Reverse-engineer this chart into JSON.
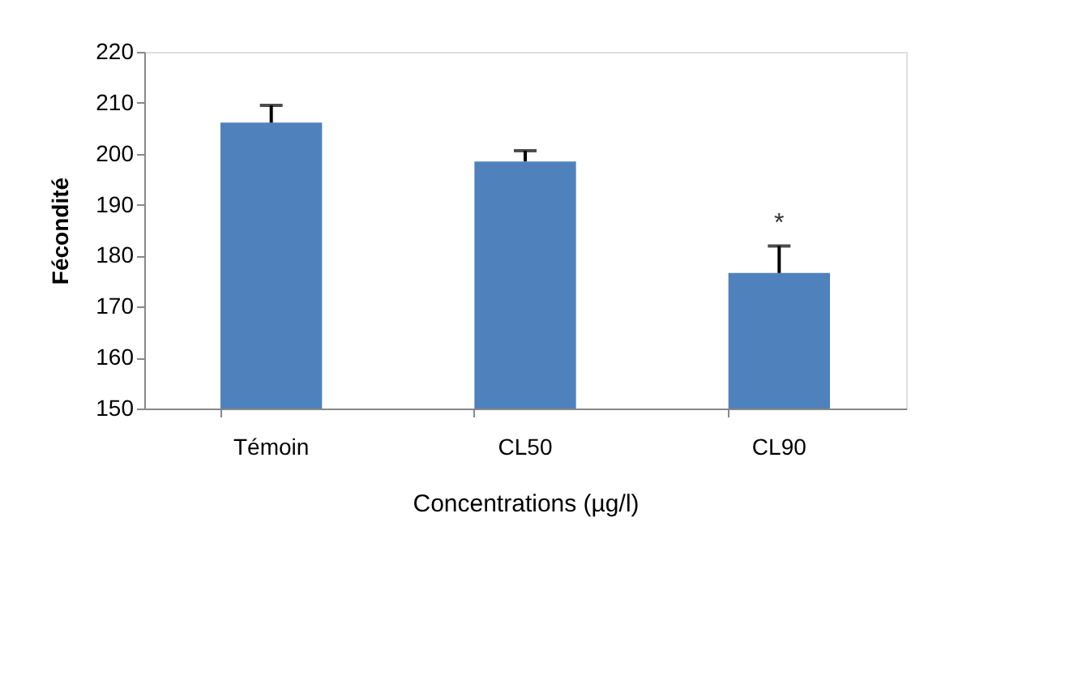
{
  "chart_data": {
    "type": "bar",
    "xlabel": "Concentrations (µg/l)",
    "ylabel": "Fécondité",
    "categories": [
      "Témoin",
      "CL50",
      "CL90"
    ],
    "values": [
      206.1,
      198.5,
      176.6
    ],
    "errors": [
      [
        206.1,
        209.5
      ],
      [
        198.5,
        200.6
      ],
      [
        176.6,
        181.9
      ]
    ],
    "color": "#4f81bd",
    "ylim": [
      150,
      220
    ],
    "yticks": [
      150,
      160,
      170,
      180,
      190,
      200,
      210,
      220
    ],
    "grid": false,
    "annotations": [
      "*"
    ]
  }
}
